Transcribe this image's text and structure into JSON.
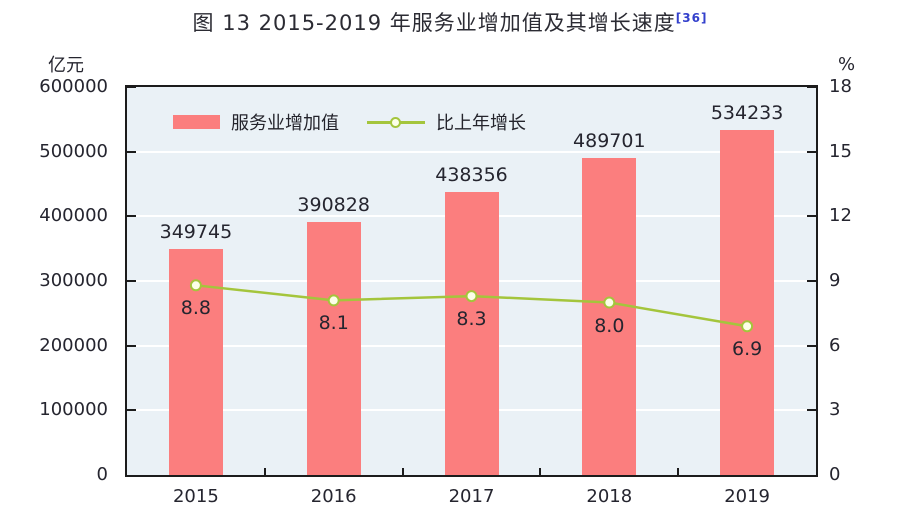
{
  "header": {
    "title": "图 13  2015-2019 年服务业增加值及其增长速度",
    "footnote": "[36]",
    "footnote_color": "#3340cc"
  },
  "chart_data": {
    "type": "bar",
    "title": "图 13 2015-2019 年服务业增加值及其增长速度",
    "categories": [
      "2015",
      "2016",
      "2017",
      "2018",
      "2019"
    ],
    "series": [
      {
        "name": "服务业增加值",
        "type": "bar",
        "axis": "left",
        "color": "#fb7e7e",
        "values": [
          349745,
          390828,
          438356,
          489701,
          534233
        ],
        "labels": [
          "349745",
          "390828",
          "438356",
          "489701",
          "534233"
        ]
      },
      {
        "name": "比上年增长",
        "type": "line",
        "axis": "right",
        "color": "#a4c53c",
        "marker_fill": "#fcffe8",
        "values": [
          8.8,
          8.1,
          8.3,
          8.0,
          6.9
        ],
        "labels": [
          "8.8",
          "8.1",
          "8.3",
          "8.0",
          "6.9"
        ]
      }
    ],
    "left_axis": {
      "unit": "亿元",
      "min": 0,
      "max": 600000,
      "tick_values": [
        0,
        100000,
        200000,
        300000,
        400000,
        500000,
        600000
      ],
      "tick_labels": [
        "0",
        "100000",
        "200000",
        "300000",
        "400000",
        "500000",
        "600000"
      ]
    },
    "right_axis": {
      "unit": "%",
      "min": 0,
      "max": 18,
      "tick_values": [
        0,
        3,
        6,
        9,
        12,
        15,
        18
      ],
      "tick_labels": [
        "0",
        "3",
        "6",
        "9",
        "12",
        "15",
        "18"
      ]
    },
    "grid": true,
    "legend_position": "top-left-inside",
    "plot_bg": "#eaf1f6",
    "grid_color": "#ffffff",
    "axis_color": "#1c1c1c",
    "text_color": "#25252f"
  }
}
